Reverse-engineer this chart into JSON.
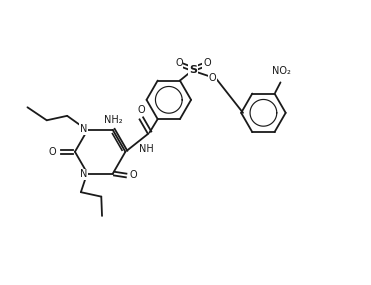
{
  "bg": "#ffffff",
  "lc": "#1a1a1a",
  "lw": 1.3,
  "fs": 7.0,
  "figsize": [
    3.71,
    2.85
  ],
  "dpi": 100,
  "xlim": [
    0,
    10
  ],
  "ylim": [
    0,
    7.5
  ]
}
